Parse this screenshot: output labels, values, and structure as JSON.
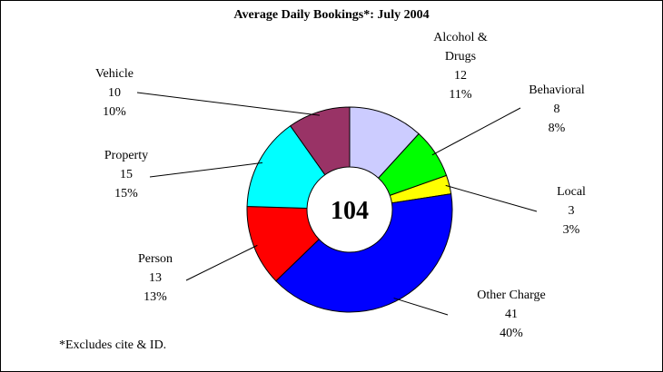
{
  "chart_data": {
    "type": "donut",
    "title": "Average Daily Bookings*: July 2004",
    "categories": [
      "Alcohol & Drugs",
      "Behavioral",
      "Local",
      "Other Charge",
      "Person",
      "Property",
      "Vehicle"
    ],
    "values": [
      12,
      8,
      3,
      41,
      13,
      15,
      10
    ],
    "percents": [
      11,
      8,
      3,
      40,
      13,
      15,
      10
    ],
    "percent_labels": [
      "11%",
      "8%",
      "3%",
      "40%",
      "13%",
      "15%",
      "10%"
    ],
    "colors": [
      "#ccccff",
      "#00ff00",
      "#ffff00",
      "#0000ff",
      "#ff0000",
      "#00ffff",
      "#993366"
    ],
    "center_label": 104,
    "footnote": "*Excludes cite & ID."
  }
}
